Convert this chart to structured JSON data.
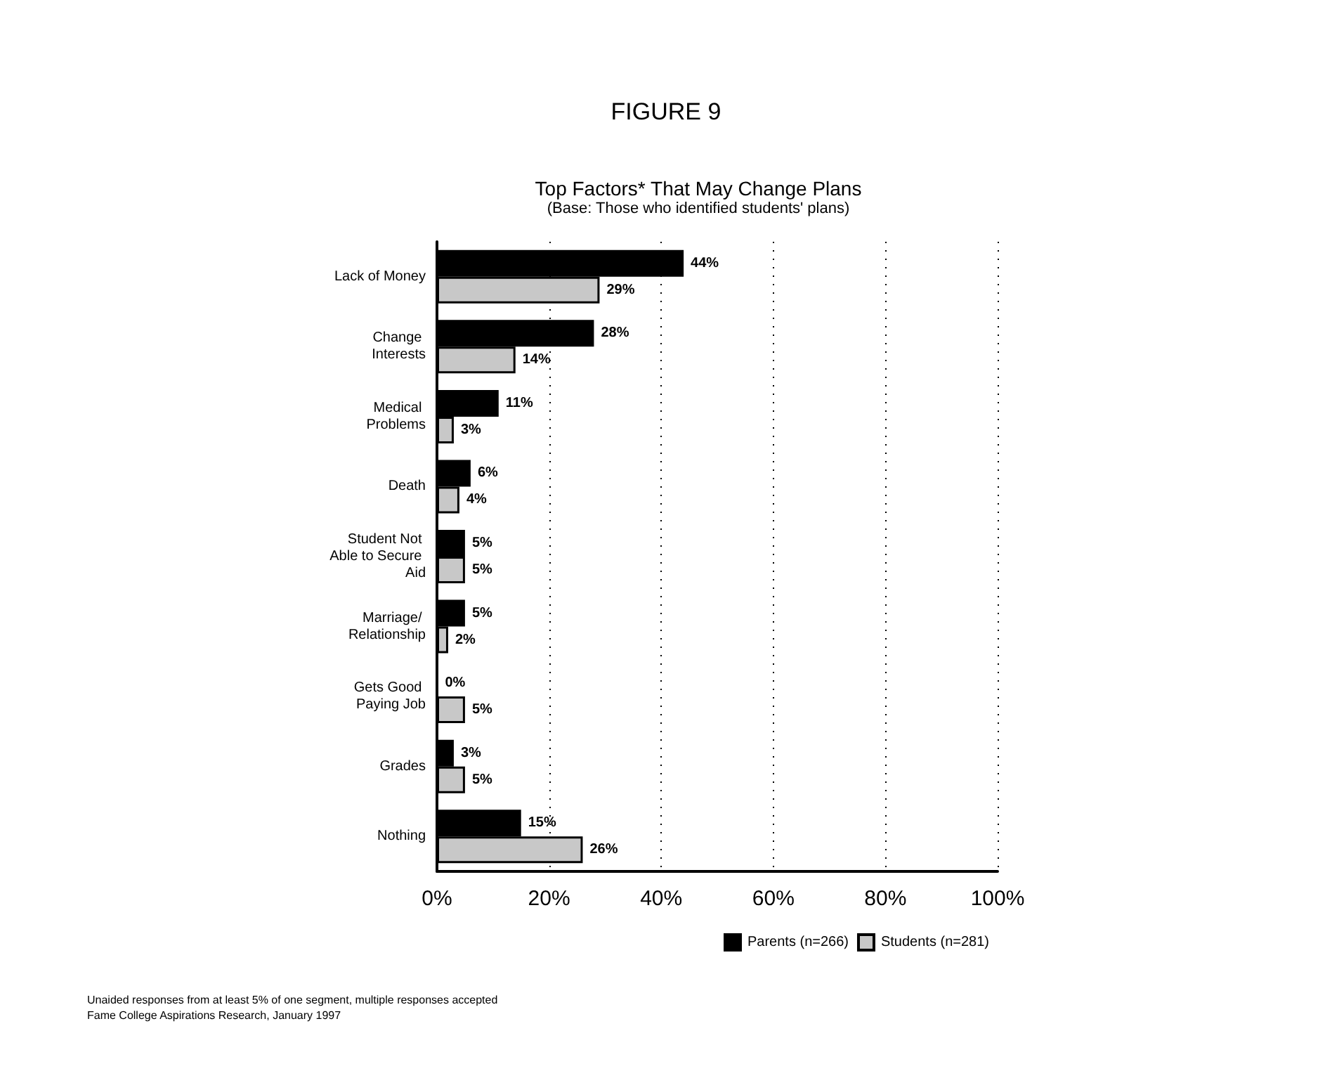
{
  "chart_data": {
    "type": "bar",
    "orientation": "horizontal",
    "title": "Top Factors* That May Change Plans",
    "subtitle": "(Base: Those who identified students' plans)",
    "categories": [
      "Lack of Money",
      "Change Interests",
      "Medical Problems",
      "Death",
      "Student Not Able to Secure Aid",
      "Marriage/ Relationship",
      "Gets Good Paying Job",
      "Grades",
      "Nothing"
    ],
    "series": [
      {
        "name": "Parents (n=266)",
        "color": "#000000",
        "values": [
          44,
          28,
          11,
          6,
          5,
          5,
          0,
          3,
          15
        ],
        "value_labels": [
          "44%",
          "28%",
          "11%",
          "6%",
          "5%",
          "5%",
          "0%",
          "3%",
          "15%"
        ]
      },
      {
        "name": "Students (n=281)",
        "color": "#c8c8c8",
        "values": [
          29,
          14,
          3,
          4,
          5,
          2,
          5,
          5,
          26
        ],
        "value_labels": [
          "29%",
          "14%",
          "3%",
          "4%",
          "5%",
          "2%",
          "5%",
          "5%",
          "26%"
        ]
      }
    ],
    "xlim": [
      0,
      100
    ],
    "xticks": [
      {
        "value": 0,
        "label": "0%"
      },
      {
        "value": 20,
        "label": "20%"
      },
      {
        "value": 40,
        "label": "40%"
      },
      {
        "value": 60,
        "label": "60%"
      },
      {
        "value": 80,
        "label": "80%"
      },
      {
        "value": 100,
        "label": "100%"
      }
    ],
    "grid": "x",
    "line_style": "dotted",
    "legend": "bottom",
    "annotations": [
      "FIGURE 9",
      "Unaided responses from at least 5% of one segment, multiple responses accepted",
      "Fame College Aspirations Research, January 1997"
    ]
  }
}
